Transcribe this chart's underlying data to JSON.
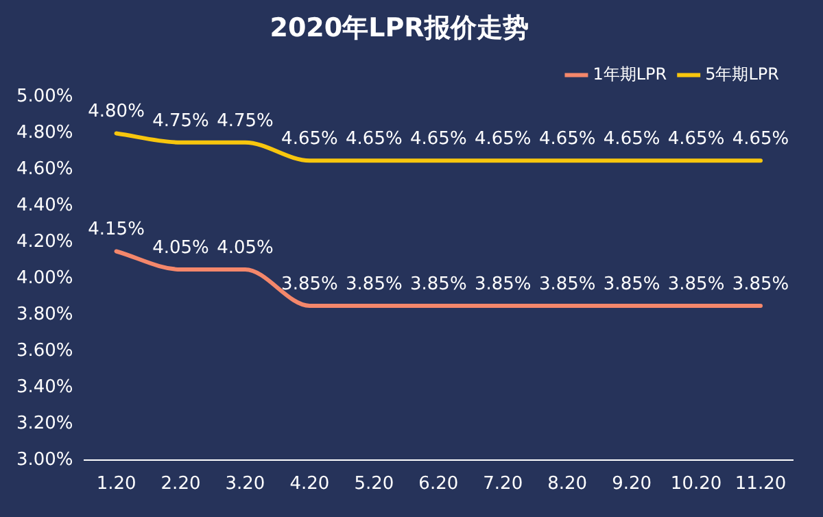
{
  "chart_data": {
    "type": "line",
    "title": "2020年LPR报价走势",
    "categories": [
      "1.20",
      "2.20",
      "3.20",
      "4.20",
      "5.20",
      "6.20",
      "7.20",
      "8.20",
      "9.20",
      "10.20",
      "11.20"
    ],
    "series": [
      {
        "name": "1年期LPR",
        "color": "#f4876b",
        "values": [
          4.15,
          4.05,
          4.05,
          3.85,
          3.85,
          3.85,
          3.85,
          3.85,
          3.85,
          3.85,
          3.85
        ],
        "value_labels": [
          "4.15%",
          "4.05%",
          "4.05%",
          "3.85%",
          "3.85%",
          "3.85%",
          "3.85%",
          "3.85%",
          "3.85%",
          "3.85%",
          "3.85%"
        ]
      },
      {
        "name": "5年期LPR",
        "color": "#f7c60e",
        "values": [
          4.8,
          4.75,
          4.75,
          4.65,
          4.65,
          4.65,
          4.65,
          4.65,
          4.65,
          4.65,
          4.65
        ],
        "value_labels": [
          "4.80%",
          "4.75%",
          "4.75%",
          "4.65%",
          "4.65%",
          "4.65%",
          "4.65%",
          "4.65%",
          "4.65%",
          "4.65%",
          "4.65%"
        ]
      }
    ],
    "ylim": [
      3.0,
      5.0
    ],
    "yticks": [
      {
        "value": 3.0,
        "label": "3.00%"
      },
      {
        "value": 3.2,
        "label": "3.20%"
      },
      {
        "value": 3.4,
        "label": "3.40%"
      },
      {
        "value": 3.6,
        "label": "3.60%"
      },
      {
        "value": 3.8,
        "label": "3.80%"
      },
      {
        "value": 4.0,
        "label": "4.00%"
      },
      {
        "value": 4.2,
        "label": "4.20%"
      },
      {
        "value": 4.4,
        "label": "4.40%"
      },
      {
        "value": 4.6,
        "label": "4.60%"
      },
      {
        "value": 4.8,
        "label": "4.80%"
      },
      {
        "value": 5.0,
        "label": "5.00%"
      }
    ],
    "grid": false,
    "legend": "top right",
    "marker": "none",
    "line_style": "solid"
  }
}
